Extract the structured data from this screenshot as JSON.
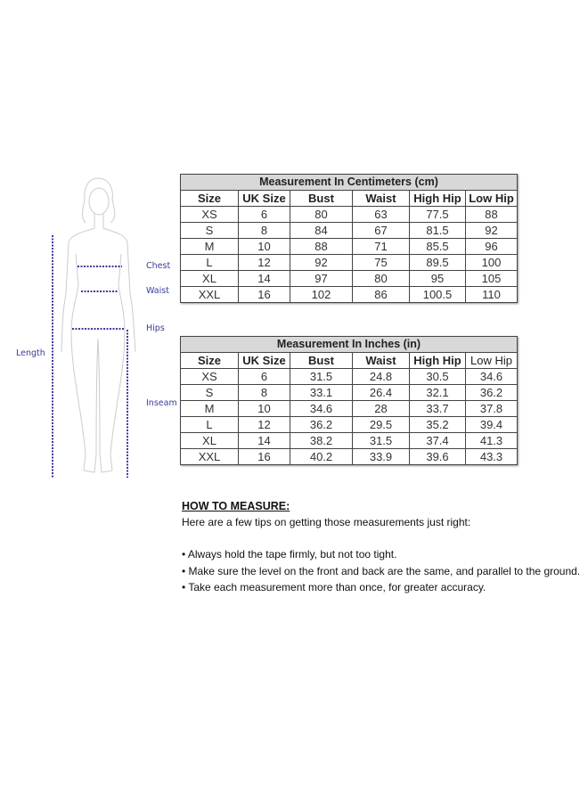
{
  "diagram": {
    "labels": {
      "chest": "Chest",
      "waist": "Waist",
      "hips": "Hips",
      "inseam": "Inseam",
      "length": "Length"
    },
    "line_color": "#3a3a9a"
  },
  "cm_table": {
    "title": "Measurement In Centimeters (cm)",
    "headers": [
      "Size",
      "UK Size",
      "Bust",
      "Waist",
      "High Hip",
      "Low Hip"
    ],
    "rows": [
      [
        "XS",
        "6",
        "80",
        "63",
        "77.5",
        "88"
      ],
      [
        "S",
        "8",
        "84",
        "67",
        "81.5",
        "92"
      ],
      [
        "M",
        "10",
        "88",
        "71",
        "85.5",
        "96"
      ],
      [
        "L",
        "12",
        "92",
        "75",
        "89.5",
        "100"
      ],
      [
        "XL",
        "14",
        "97",
        "80",
        "95",
        "105"
      ],
      [
        "XXL",
        "16",
        "102",
        "86",
        "100.5",
        "110"
      ]
    ]
  },
  "in_table": {
    "title": "Measurement In Inches (in)",
    "headers": [
      "Size",
      "UK Size",
      "Bust",
      "Waist",
      "High Hip",
      "Low Hip"
    ],
    "rows": [
      [
        "XS",
        "6",
        "31.5",
        "24.8",
        "30.5",
        "34.6"
      ],
      [
        "S",
        "8",
        "33.1",
        "26.4",
        "32.1",
        "36.2"
      ],
      [
        "M",
        "10",
        "34.6",
        "28",
        "33.7",
        "37.8"
      ],
      [
        "L",
        "12",
        "36.2",
        "29.5",
        "35.2",
        "39.4"
      ],
      [
        "XL",
        "14",
        "38.2",
        "31.5",
        "37.4",
        "41.3"
      ],
      [
        "XXL",
        "16",
        "40.2",
        "33.9",
        "39.6",
        "43.3"
      ]
    ]
  },
  "how_to": {
    "heading": "HOW TO MEASURE:",
    "intro": "Here are a few tips on getting those measurements just right:",
    "tips": [
      "• Always hold the tape firmly, but not too tight.",
      "• Make sure the level on the front and back are the same, and parallel to the ground.",
      "• Take each measurement more than once, for greater accuracy."
    ]
  }
}
